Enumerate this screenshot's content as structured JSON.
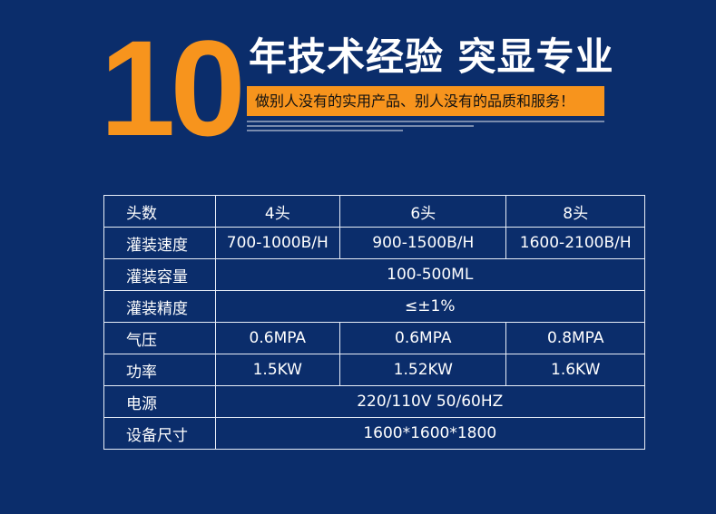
{
  "banner": {
    "number": "10",
    "title": "年技术经验 突显专业",
    "slogan": "做别人没有的实用产品、别人没有的品质和服务！"
  },
  "colors": {
    "background": "#0b2d6b",
    "accent": "#f7941d",
    "text": "#ffffff"
  },
  "table": {
    "rows": [
      {
        "label": "头数",
        "cells": [
          "4头",
          "6头",
          "8头"
        ]
      },
      {
        "label": "灌装速度",
        "cells": [
          "700-1000B/H",
          "900-1500B/H",
          "1600-2100B/H"
        ]
      },
      {
        "label": "灌装容量",
        "cells": [
          "100-500ML"
        ]
      },
      {
        "label": "灌装精度",
        "cells": [
          "≤±1%"
        ]
      },
      {
        "label": "气压",
        "cells": [
          "0.6MPA",
          "0.6MPA",
          "0.8MPA"
        ]
      },
      {
        "label": "功率",
        "cells": [
          "1.5KW",
          "1.52KW",
          "1.6KW"
        ]
      },
      {
        "label": "电源",
        "cells": [
          "220/110V 50/60HZ"
        ]
      },
      {
        "label": "设备尺寸",
        "cells": [
          "1600*1600*1800"
        ]
      }
    ]
  }
}
